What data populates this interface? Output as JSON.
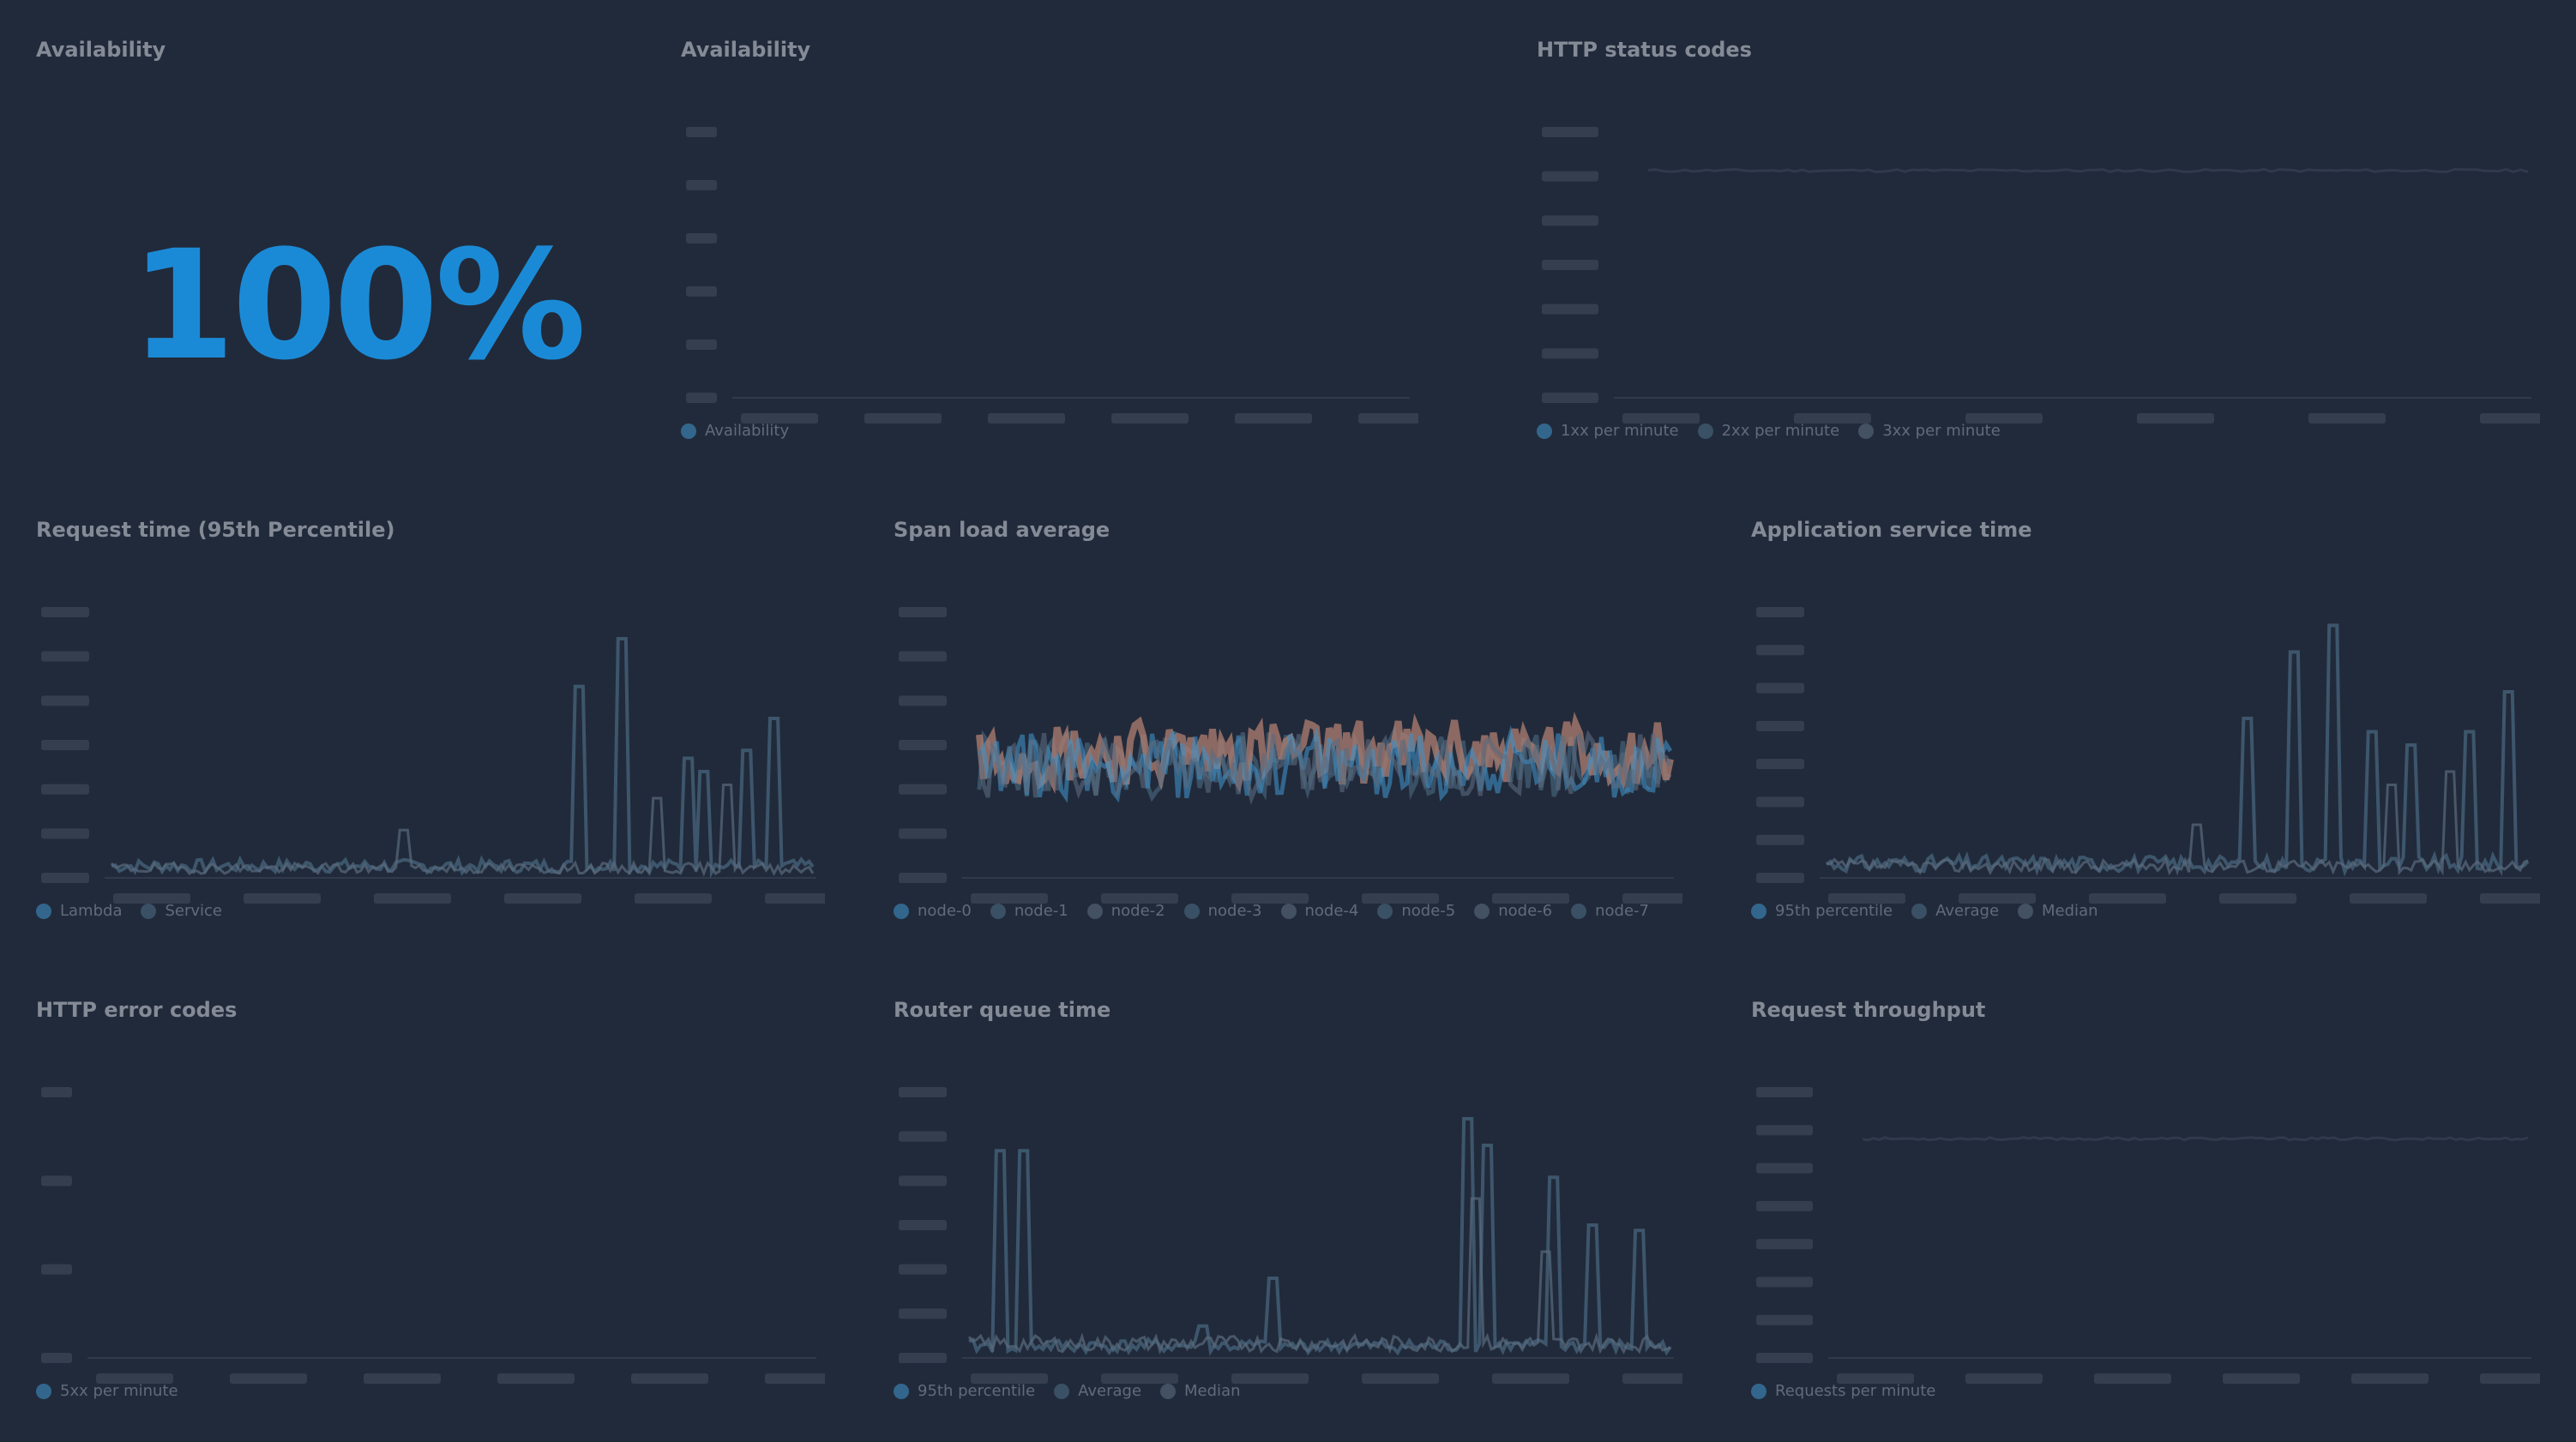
{
  "panels": [
    {
      "title": "Availability",
      "value": "100%",
      "color": "#1b8ad6"
    },
    {
      "title": "Availability",
      "legend": [
        "Availability"
      ]
    },
    {
      "title": "HTTP status codes",
      "legend": [
        "1xx per minute",
        "2xx per minute",
        "3xx per minute"
      ]
    },
    {
      "title": "Request time (95th Percentile)",
      "legend": [
        "Lambda",
        "Service"
      ]
    },
    {
      "title": "Span load average",
      "legend": [
        "node-0",
        "node-1",
        "node-2",
        "node-3",
        "node-4",
        "node-5",
        "node-6",
        "node-7"
      ]
    },
    {
      "title": "Application service time",
      "legend": [
        "95th percentile",
        "Average",
        "Median"
      ]
    },
    {
      "title": "HTTP error codes",
      "legend": [
        "5xx per minute"
      ]
    },
    {
      "title": "Router queue time",
      "legend": [
        "95th percentile",
        "Average",
        "Median"
      ]
    },
    {
      "title": "Request throughput",
      "legend": [
        "Requests per minute"
      ]
    }
  ],
  "colors": {
    "background": "#212a3a",
    "accent": "#1b8ad6",
    "series_blue": "#3f8fc4",
    "series_slate": "#4a6a82",
    "series_salmon": "#b07f72",
    "series_gray": "#5a6b7e"
  }
}
